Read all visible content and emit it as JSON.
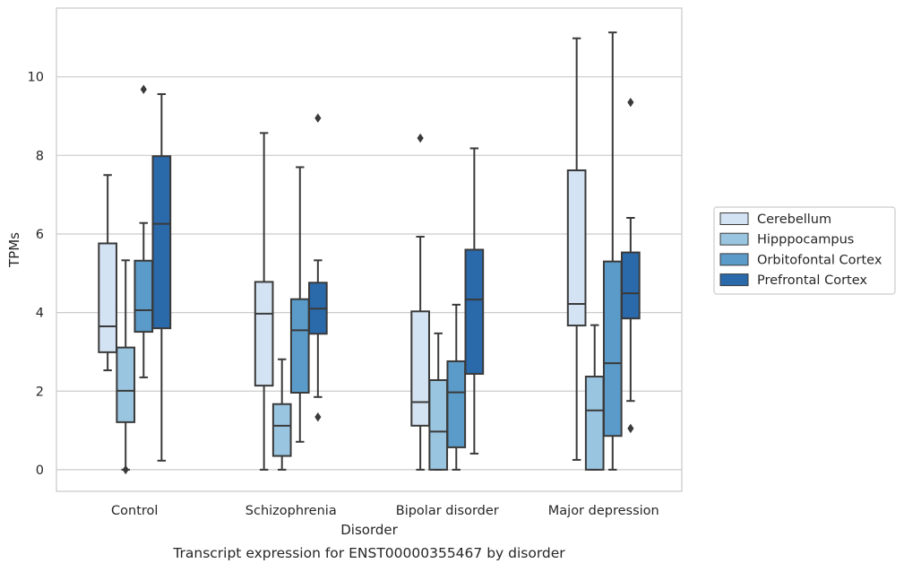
{
  "chart_data": {
    "type": "box",
    "title": "",
    "caption": "Transcript expression for ENST00000355467 by disorder",
    "xlabel": "Disorder",
    "ylabel": "TPMs",
    "ylim": [
      -0.55,
      11.75
    ],
    "yticks": [
      0,
      2,
      4,
      6,
      8,
      10
    ],
    "grid": "horizontal",
    "legend_position": "right",
    "categories": [
      "Control",
      "Schizophrenia",
      "Bipolar disorder",
      "Major depression"
    ],
    "series": [
      {
        "name": "Cerebellum",
        "color": "#d4e3f3",
        "boxes": [
          {
            "whisker_low": 2.53,
            "q1": 2.99,
            "median": 3.65,
            "q3": 5.76,
            "whisker_high": 7.5,
            "outliers": []
          },
          {
            "whisker_low": 0.0,
            "q1": 2.14,
            "median": 3.97,
            "q3": 4.78,
            "whisker_high": 8.57,
            "outliers": []
          },
          {
            "whisker_low": 0.0,
            "q1": 1.12,
            "median": 1.72,
            "q3": 4.03,
            "whisker_high": 5.93,
            "outliers": [
              8.44
            ]
          },
          {
            "whisker_low": 0.25,
            "q1": 3.67,
            "median": 4.22,
            "q3": 7.62,
            "whisker_high": 10.98,
            "outliers": []
          }
        ]
      },
      {
        "name": "Hipppocampus",
        "color": "#9ac5e0",
        "boxes": [
          {
            "whisker_low": 0.0,
            "q1": 1.21,
            "median": 2.01,
            "q3": 3.11,
            "whisker_high": 5.33,
            "outliers": [
              0.0
            ]
          },
          {
            "whisker_low": 0.0,
            "q1": 0.35,
            "median": 1.12,
            "q3": 1.67,
            "whisker_high": 2.81,
            "outliers": []
          },
          {
            "whisker_low": 0.0,
            "q1": 0.0,
            "median": 0.97,
            "q3": 2.28,
            "whisker_high": 3.47,
            "outliers": []
          },
          {
            "whisker_low": 0.0,
            "q1": 0.0,
            "median": 1.51,
            "q3": 2.37,
            "whisker_high": 3.68,
            "outliers": []
          }
        ]
      },
      {
        "name": "Orbitofontal Cortex",
        "color": "#5b9bc9",
        "boxes": [
          {
            "whisker_low": 2.35,
            "q1": 3.51,
            "median": 4.06,
            "q3": 5.32,
            "whisker_high": 6.28,
            "outliers": [
              9.68
            ]
          },
          {
            "whisker_low": 0.71,
            "q1": 1.96,
            "median": 3.55,
            "q3": 4.34,
            "whisker_high": 7.7,
            "outliers": []
          },
          {
            "whisker_low": 0.0,
            "q1": 0.57,
            "median": 1.97,
            "q3": 2.76,
            "whisker_high": 4.2,
            "outliers": []
          },
          {
            "whisker_low": 0.0,
            "q1": 0.86,
            "median": 2.71,
            "q3": 5.3,
            "whisker_high": 11.13,
            "outliers": []
          }
        ]
      },
      {
        "name": "Prefrontal Cortex",
        "color": "#2a69aa",
        "boxes": [
          {
            "whisker_low": 0.23,
            "q1": 3.6,
            "median": 6.26,
            "q3": 7.98,
            "whisker_high": 9.56,
            "outliers": []
          },
          {
            "whisker_low": 1.85,
            "q1": 3.46,
            "median": 4.1,
            "q3": 4.76,
            "whisker_high": 5.33,
            "outliers": [
              8.95,
              1.34
            ]
          },
          {
            "whisker_low": 0.41,
            "q1": 2.44,
            "median": 4.33,
            "q3": 5.6,
            "whisker_high": 8.18,
            "outliers": []
          },
          {
            "whisker_low": 1.75,
            "q1": 3.85,
            "median": 4.49,
            "q3": 5.53,
            "whisker_high": 6.41,
            "outliers": [
              9.35,
              1.05
            ]
          }
        ]
      }
    ]
  }
}
